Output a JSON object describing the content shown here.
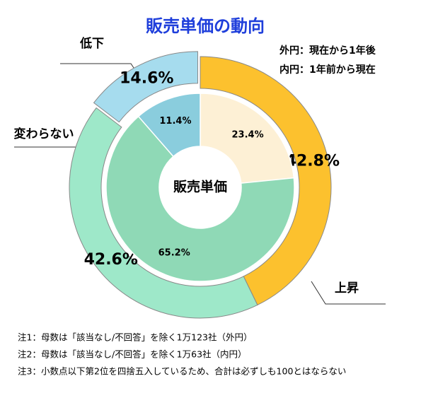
{
  "chart_data": {
    "type": "donut",
    "title": "販売単価の動向",
    "center_label": "販売単価",
    "categories": [
      "上昇",
      "変わらない",
      "低下"
    ],
    "series": [
      {
        "name": "外円：現在から1年後",
        "ring": "outer",
        "colors": [
          "#fcc12e",
          "#9ee8c9",
          "#a6dcee"
        ],
        "values": [
          42.8,
          42.6,
          14.6
        ],
        "value_labels": [
          "42.8%",
          "42.6%",
          "14.6%"
        ]
      },
      {
        "name": "内円：1年前から現在",
        "ring": "inner",
        "colors": [
          "#fdf0d5",
          "#8fd9b6",
          "#8acddd"
        ],
        "values": [
          23.4,
          65.2,
          11.4
        ],
        "value_labels": [
          "23.4%",
          "65.2%",
          "11.4%"
        ]
      }
    ],
    "notes": [
      "注1：母数は「該当なし/不回答」を除く1万123社（外円）",
      "注2：母数は「該当なし/不回答」を除く1万63社（内円）",
      "注3：小数点以下第2位を四捨五入しているため、合計は必ずしも100とはならない"
    ]
  }
}
